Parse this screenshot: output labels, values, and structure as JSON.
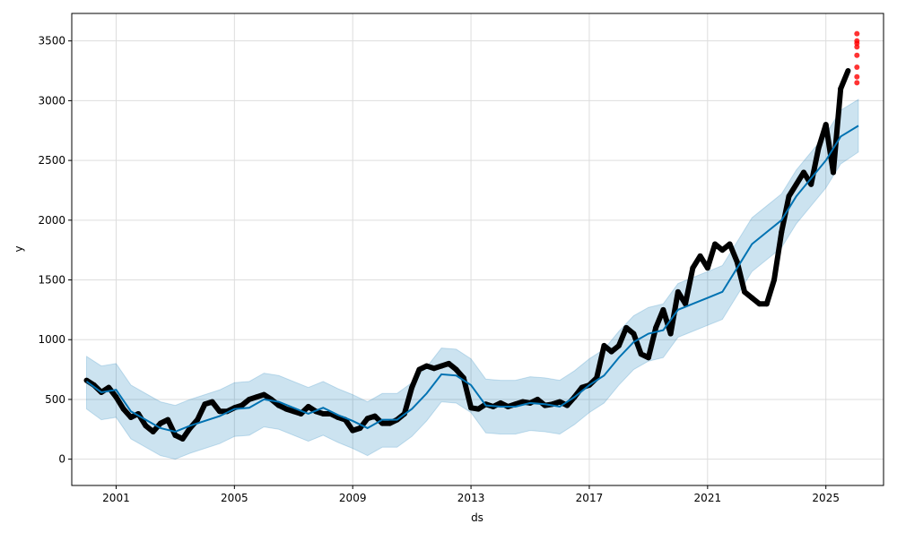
{
  "chart_data": {
    "type": "line",
    "title": "",
    "xlabel": "ds",
    "ylabel": "y",
    "xlim": [
      1999.5,
      2026.95
    ],
    "ylim": [
      -220,
      3730
    ],
    "grid": true,
    "x_ticks": [
      2001,
      2005,
      2009,
      2013,
      2017,
      2021,
      2025
    ],
    "x_tick_labels": [
      "2001",
      "2005",
      "2009",
      "2013",
      "2017",
      "2021",
      "2025"
    ],
    "y_ticks": [
      0,
      500,
      1000,
      1500,
      2000,
      2500,
      3000,
      3500
    ],
    "y_tick_labels": [
      "0",
      "500",
      "1000",
      "1500",
      "2000",
      "2500",
      "3000",
      "3500"
    ],
    "colors": {
      "forecast": "#0072B2",
      "interval": "#0072B2",
      "observed": "#000000",
      "future_observed": "#ff0000",
      "grid": "#dddddd"
    },
    "forecast": {
      "x": [
        2000.0,
        2000.5,
        2001.0,
        2001.5,
        2002.0,
        2002.5,
        2003.0,
        2003.5,
        2004.0,
        2004.5,
        2005.0,
        2005.5,
        2006.0,
        2006.5,
        2007.0,
        2007.5,
        2008.0,
        2008.5,
        2009.0,
        2009.5,
        2010.0,
        2010.5,
        2011.0,
        2011.5,
        2012.0,
        2012.5,
        2013.0,
        2013.5,
        2014.0,
        2014.5,
        2015.0,
        2015.5,
        2016.0,
        2016.5,
        2017.0,
        2017.5,
        2018.0,
        2018.5,
        2019.0,
        2019.5,
        2020.0,
        2020.5,
        2021.0,
        2021.5,
        2022.0,
        2022.5,
        2023.0,
        2023.5,
        2024.0,
        2024.5,
        2025.0,
        2025.5,
        2026.1
      ],
      "yhat": [
        650,
        560,
        580,
        400,
        330,
        260,
        230,
        280,
        320,
        360,
        420,
        430,
        500,
        480,
        430,
        380,
        430,
        370,
        320,
        260,
        330,
        330,
        420,
        550,
        710,
        700,
        620,
        450,
        440,
        440,
        470,
        460,
        440,
        520,
        620,
        700,
        850,
        980,
        1050,
        1080,
        1250,
        1300,
        1350,
        1400,
        1600,
        1800,
        1900,
        2000,
        2200,
        2350,
        2500,
        2700,
        2790
      ],
      "yhat_lower": [
        420,
        330,
        350,
        170,
        100,
        30,
        0,
        50,
        90,
        130,
        190,
        200,
        270,
        250,
        200,
        150,
        200,
        140,
        90,
        30,
        100,
        100,
        190,
        320,
        480,
        470,
        390,
        220,
        210,
        210,
        240,
        230,
        210,
        290,
        390,
        470,
        620,
        750,
        820,
        850,
        1020,
        1070,
        1120,
        1170,
        1370,
        1570,
        1670,
        1770,
        1970,
        2120,
        2270,
        2470,
        2570
      ],
      "yhat_upper": [
        860,
        780,
        800,
        620,
        550,
        480,
        450,
        500,
        540,
        580,
        640,
        650,
        720,
        700,
        650,
        600,
        650,
        590,
        540,
        480,
        550,
        550,
        640,
        770,
        930,
        920,
        840,
        670,
        660,
        660,
        690,
        680,
        660,
        740,
        840,
        920,
        1070,
        1200,
        1270,
        1300,
        1470,
        1520,
        1570,
        1620,
        1820,
        2020,
        2120,
        2220,
        2420,
        2570,
        2720,
        2920,
        3010
      ]
    },
    "observed": {
      "x": [
        2000.0,
        2000.25,
        2000.5,
        2000.75,
        2001.0,
        2001.25,
        2001.5,
        2001.75,
        2002.0,
        2002.25,
        2002.5,
        2002.75,
        2003.0,
        2003.25,
        2003.5,
        2003.75,
        2004.0,
        2004.25,
        2004.5,
        2004.75,
        2005.0,
        2005.25,
        2005.5,
        2005.75,
        2006.0,
        2006.25,
        2006.5,
        2006.75,
        2007.0,
        2007.25,
        2007.5,
        2007.75,
        2008.0,
        2008.25,
        2008.5,
        2008.75,
        2009.0,
        2009.25,
        2009.5,
        2009.75,
        2010.0,
        2010.25,
        2010.5,
        2010.75,
        2011.0,
        2011.25,
        2011.5,
        2011.75,
        2012.0,
        2012.25,
        2012.5,
        2012.75,
        2013.0,
        2013.25,
        2013.5,
        2013.75,
        2014.0,
        2014.25,
        2014.5,
        2014.75,
        2015.0,
        2015.25,
        2015.5,
        2015.75,
        2016.0,
        2016.25,
        2016.5,
        2016.75,
        2017.0,
        2017.25,
        2017.5,
        2017.75,
        2018.0,
        2018.25,
        2018.5,
        2018.75,
        2019.0,
        2019.25,
        2019.5,
        2019.75,
        2020.0,
        2020.25,
        2020.5,
        2020.75,
        2021.0,
        2021.25,
        2021.5,
        2021.75,
        2022.0,
        2022.25,
        2022.5,
        2022.75,
        2023.0,
        2023.25,
        2023.5,
        2023.75,
        2024.0,
        2024.25,
        2024.5,
        2024.75,
        2025.0,
        2025.25,
        2025.5,
        2025.75
      ],
      "y": [
        660,
        620,
        560,
        600,
        520,
        420,
        350,
        380,
        280,
        230,
        300,
        330,
        200,
        170,
        260,
        330,
        460,
        480,
        400,
        400,
        430,
        450,
        500,
        520,
        540,
        500,
        450,
        420,
        400,
        380,
        440,
        400,
        380,
        380,
        350,
        330,
        240,
        260,
        340,
        360,
        300,
        300,
        330,
        380,
        600,
        750,
        780,
        760,
        780,
        800,
        750,
        680,
        430,
        420,
        460,
        440,
        470,
        440,
        460,
        480,
        470,
        500,
        450,
        460,
        480,
        450,
        520,
        600,
        620,
        680,
        950,
        900,
        950,
        1100,
        1050,
        880,
        850,
        1100,
        1250,
        1050,
        1400,
        1300,
        1600,
        1700,
        1600,
        1800,
        1750,
        1800,
        1650,
        1400,
        1350,
        1300,
        1300,
        1500,
        1900,
        2200,
        2300,
        2400,
        2300,
        2600,
        2800,
        2400,
        3100,
        3250
      ]
    },
    "future_observed": {
      "x": [
        2026.05,
        2026.05,
        2026.05,
        2026.05,
        2026.05,
        2026.05,
        2026.05,
        2026.05
      ],
      "y": [
        3150,
        3200,
        3280,
        3380,
        3450,
        3480,
        3500,
        3560
      ]
    }
  }
}
